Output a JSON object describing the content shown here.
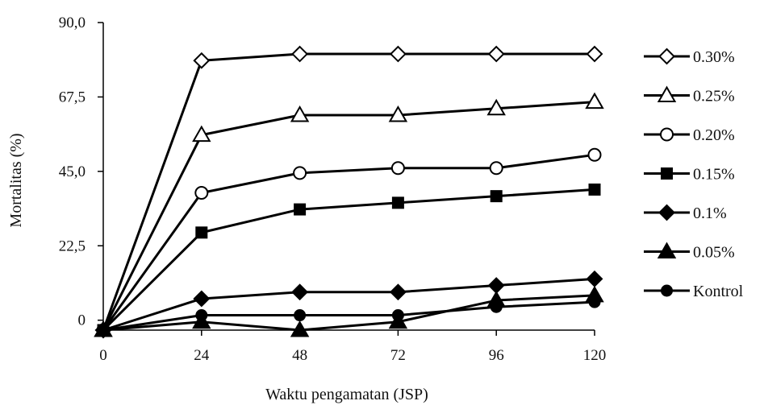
{
  "chart_data": {
    "type": "line",
    "x": [
      0,
      24,
      48,
      72,
      96,
      120
    ],
    "x_tick_labels": [
      "0",
      "24",
      "48",
      "72",
      "96",
      "120"
    ],
    "y_tick_values": [
      0,
      22.5,
      45.0,
      67.5,
      90.0
    ],
    "y_tick_labels": [
      "0",
      "22,5",
      "45,0",
      "67,5",
      "90,0"
    ],
    "xlabel": "Waktu pengamatan (JSP)",
    "ylabel": "Mortalitas (%)",
    "xlim": [
      0,
      120
    ],
    "ylim": [
      -3,
      90
    ],
    "grid": false,
    "legend_position": "right",
    "line_color": "#000000",
    "series": [
      {
        "name": "0.30%",
        "marker": "diamond-open",
        "values": [
          -3,
          78.5,
          80.5,
          80.5,
          80.5,
          80.5
        ]
      },
      {
        "name": "0.25%",
        "marker": "triangle-open",
        "values": [
          -3,
          56,
          62,
          62,
          64,
          66
        ]
      },
      {
        "name": "0.20%",
        "marker": "circle-open",
        "values": [
          -3,
          38.5,
          44.5,
          46,
          46,
          50
        ]
      },
      {
        "name": "0.15%",
        "marker": "square-filled",
        "values": [
          -3,
          26.5,
          33.5,
          35.5,
          37.5,
          39.5
        ]
      },
      {
        "name": "0.1%",
        "marker": "diamond-filled",
        "values": [
          -3,
          6.5,
          8.5,
          8.5,
          10.5,
          12.5
        ]
      },
      {
        "name": "0.05%",
        "marker": "triangle-filled",
        "values": [
          -3,
          -0.5,
          -3,
          -0.5,
          6,
          7.5
        ]
      },
      {
        "name": "Kontrol",
        "marker": "circle-filled",
        "values": [
          -3,
          1.5,
          1.5,
          1.5,
          4,
          5.5
        ]
      }
    ]
  }
}
